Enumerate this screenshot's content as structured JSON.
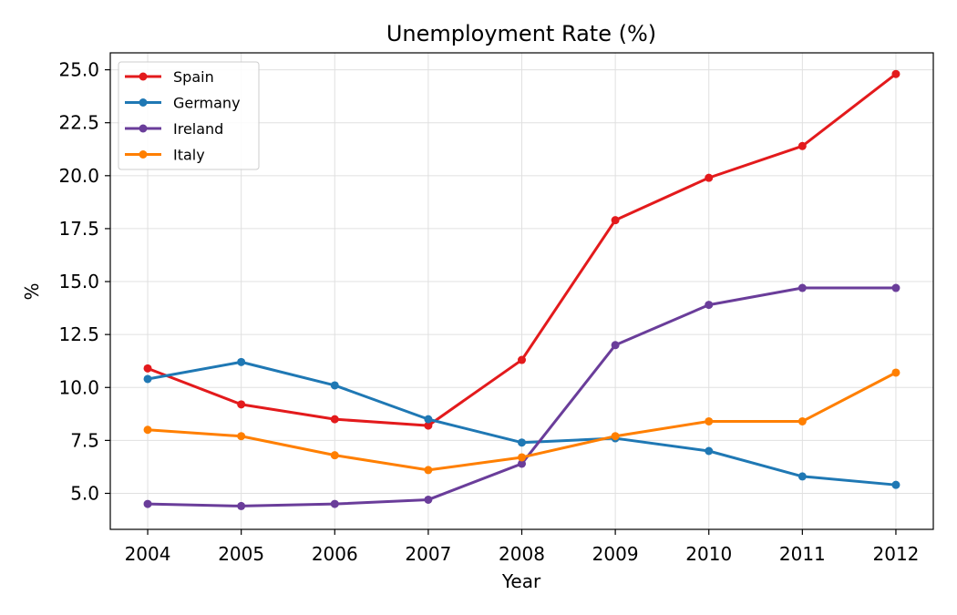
{
  "chart_data": {
    "type": "line",
    "title": "Unemployment Rate (%)",
    "xlabel": "Year",
    "ylabel": "%",
    "x": [
      "2004",
      "2005",
      "2006",
      "2007",
      "2008",
      "2009",
      "2010",
      "2011",
      "2012"
    ],
    "xlim": [
      2003.6,
      2012.4
    ],
    "ylim": [
      3.3,
      25.8
    ],
    "yticks": [
      "5.0",
      "7.5",
      "10.0",
      "12.5",
      "15.0",
      "17.5",
      "20.0",
      "22.5",
      "25.0"
    ],
    "grid": true,
    "legend_position": "top-left",
    "series": [
      {
        "name": "Spain",
        "color": "#e31a1c",
        "values": [
          10.9,
          9.2,
          8.5,
          8.2,
          11.3,
          17.9,
          19.9,
          21.4,
          24.8
        ]
      },
      {
        "name": "Germany",
        "color": "#1f78b4",
        "values": [
          10.4,
          11.2,
          10.1,
          8.5,
          7.4,
          7.6,
          7.0,
          5.8,
          5.4
        ]
      },
      {
        "name": "Ireland",
        "color": "#6a3d9a",
        "values": [
          4.5,
          4.4,
          4.5,
          4.7,
          6.4,
          12.0,
          13.9,
          14.7,
          14.7
        ]
      },
      {
        "name": "Italy",
        "color": "#ff7f00",
        "values": [
          8.0,
          7.7,
          6.8,
          6.1,
          6.7,
          7.7,
          8.4,
          8.4,
          10.7
        ]
      }
    ]
  }
}
